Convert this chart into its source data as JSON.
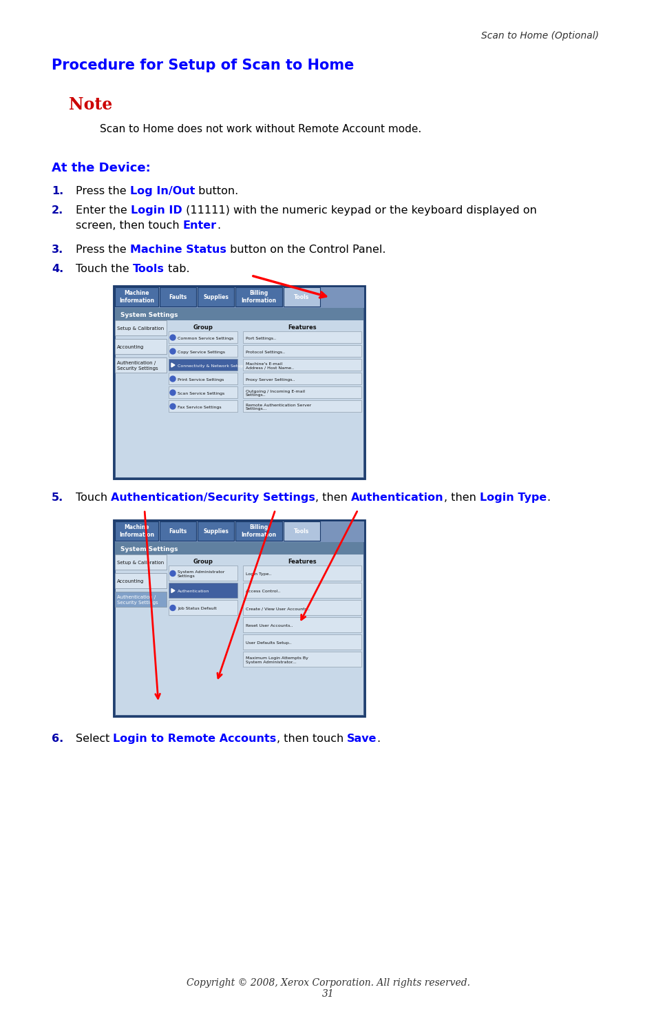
{
  "page_header_right": "Scan to Home (Optional)",
  "title": "Procedure for Setup of Scan to Home",
  "note_label": "Note",
  "note_text": "Scan to Home does not work without Remote Account mode.",
  "section_label": "At the Device:",
  "steps": [
    {
      "num": "1.",
      "parts": [
        [
          "Press the ",
          false
        ],
        [
          "Log In/Out",
          true
        ],
        [
          " button.",
          false
        ]
      ]
    },
    {
      "num": "2.",
      "parts": [
        [
          "Enter the ",
          false
        ],
        [
          "Login ID",
          true
        ],
        [
          " (11111) with the numeric keypad or the keyboard displayed on\nscreen, then touch ",
          false
        ],
        [
          "Enter",
          true
        ],
        [
          ".",
          false
        ]
      ]
    },
    {
      "num": "3.",
      "parts": [
        [
          "Press the ",
          false
        ],
        [
          "Machine Status",
          true
        ],
        [
          " button on the Control Panel.",
          false
        ]
      ]
    },
    {
      "num": "4.",
      "parts": [
        [
          "Touch the ",
          false
        ],
        [
          "Tools",
          true
        ],
        [
          " tab.",
          false
        ]
      ]
    }
  ],
  "step5_num": "5.",
  "step5_text_parts": [
    [
      "Touch ",
      false
    ],
    [
      "Authentication/Security Settings",
      true
    ],
    [
      ", then ",
      false
    ],
    [
      "Authentication",
      true
    ],
    [
      ", then ",
      false
    ],
    [
      "Login Type",
      true
    ],
    [
      ".",
      false
    ]
  ],
  "step6_num": "6.",
  "step6_text_parts": [
    [
      "Select ",
      false
    ],
    [
      "Login to Remote Accounts",
      true
    ],
    [
      ", then touch ",
      false
    ],
    [
      "Save",
      true
    ],
    [
      ".",
      false
    ]
  ],
  "footer": "Copyright © 2008, Xerox Corporation. All rights reserved.\n31",
  "bg_color": "#ffffff",
  "title_color": "#0000ff",
  "note_color": "#cc0000",
  "section_color": "#0000ff",
  "step_num_color": "#0000aa",
  "highlight_color": "#0000ff",
  "body_color": "#000000",
  "header_color": "#333333"
}
